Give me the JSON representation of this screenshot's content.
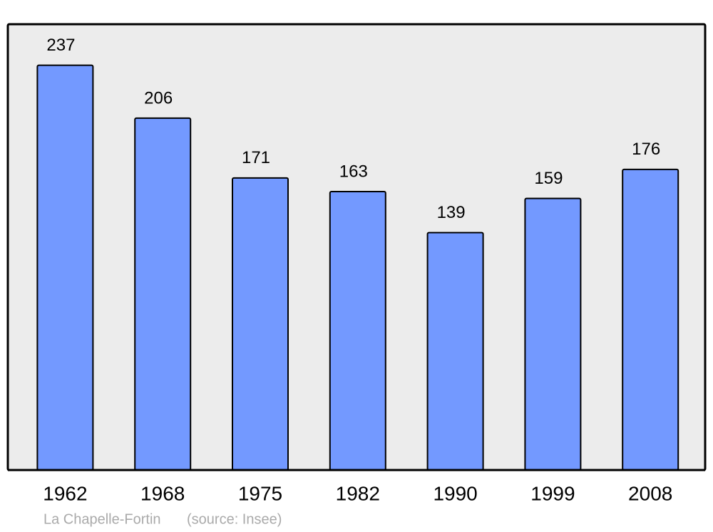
{
  "chart_data": {
    "type": "bar",
    "categories": [
      "1962",
      "1968",
      "1975",
      "1982",
      "1990",
      "1999",
      "2008"
    ],
    "values": [
      237,
      206,
      171,
      163,
      139,
      159,
      176
    ],
    "color": "#7399ff",
    "ylim": [
      0,
      261
    ],
    "caption": "La Chapelle-Fortin",
    "source": "(source: Insee)"
  }
}
